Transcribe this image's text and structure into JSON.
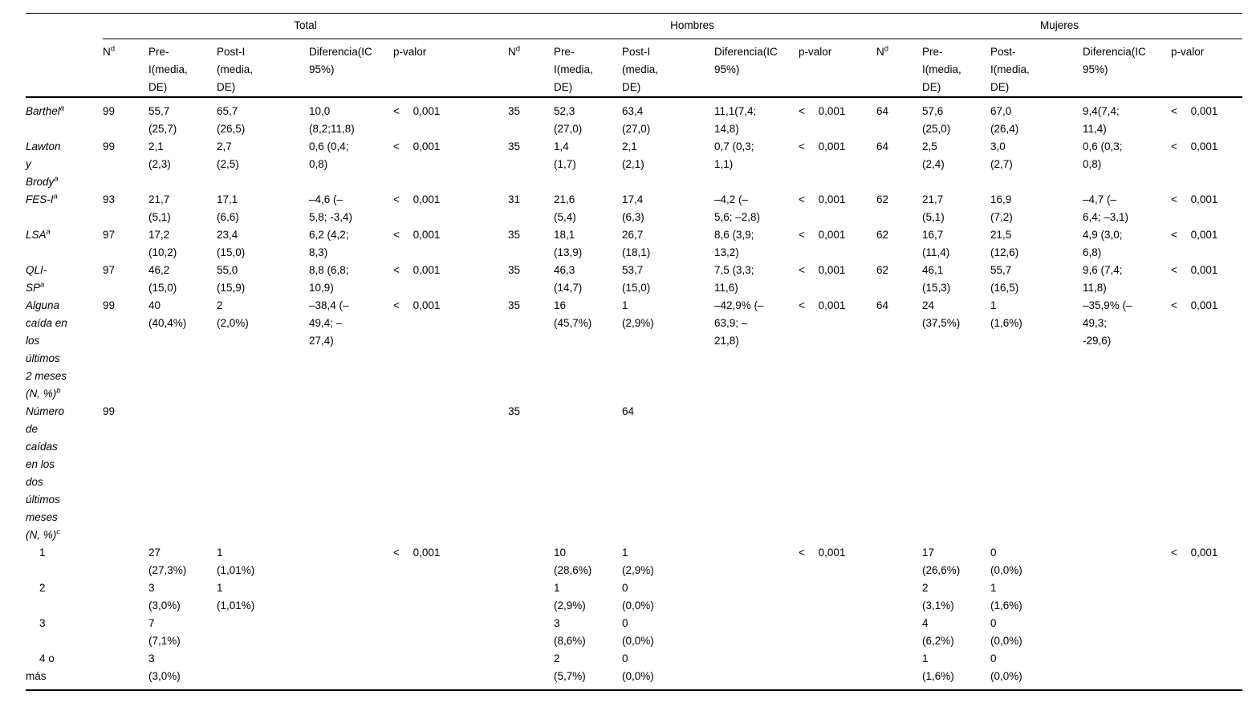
{
  "table": {
    "groups": [
      {
        "name": "Total",
        "headers": {
          "n": "N",
          "n_sup": "d",
          "pre": "Pre-\nI(media,\nDE)",
          "post": "Post-I\n(media,\nDE)",
          "dif": "Diferencia(IC\n95%)",
          "p": "p-valor"
        }
      },
      {
        "name": "Hombres",
        "headers": {
          "n": "N",
          "n_sup": "d",
          "pre": "Pre-\nI(media,\nDE)",
          "post": "Post-I\n(media,\nDE)",
          "dif": "Diferencia(IC\n95%)",
          "p": "p-valor"
        }
      },
      {
        "name": "Mujeres",
        "headers": {
          "n": "N",
          "n_sup": "d",
          "pre": "Pre-\nI(media,\nDE)",
          "post": "Post-\nI(media,\nDE)",
          "dif": "Diferencia(IC\n95%)",
          "p": "p-valor"
        }
      }
    ],
    "rows": [
      {
        "label": "Barthel",
        "sup": "a",
        "italic": true,
        "indent": false,
        "cells": [
          "99",
          "55,7\n(25,7)",
          "65,7\n(26,5)",
          "10,0\n(8,2;11,8)",
          "< 0,001",
          "35",
          "52,3\n(27,0)",
          "63,4\n(27,0)",
          "11,1(7,4;\n14,8)",
          "< 0,001",
          "64",
          "57,6\n(25,0)",
          "67,0\n(26,4)",
          "9,4(7,4;\n11,4)",
          "< 0,001"
        ]
      },
      {
        "label": "Lawton\ny\nBrody",
        "sup": "a",
        "italic": true,
        "indent": false,
        "cells": [
          "99",
          "2,1\n(2,3)",
          "2,7\n(2,5)",
          "0,6 (0,4;\n0,8)",
          "< 0,001",
          "35",
          "1,4\n(1,7)",
          "2,1\n(2,1)",
          "0,7 (0,3;\n1,1)",
          "< 0,001",
          "64",
          "2,5\n(2,4)",
          "3,0\n(2,7)",
          "0,6 (0,3;\n0,8)",
          "< 0,001"
        ]
      },
      {
        "label": "FES-I",
        "sup": "a",
        "italic": true,
        "indent": false,
        "cells": [
          "93",
          "21,7\n(5,1)",
          "17,1\n(6,6)",
          "–4,6 (–\n5,8; -3,4)",
          "< 0,001",
          "31",
          "21,6\n(5,4)",
          "17,4\n(6,3)",
          "–4,2 (–\n5,6; –2,8)",
          "< 0,001",
          "62",
          "21,7\n(5,1)",
          "16,9\n(7,2)",
          "–4,7 (–\n6,4; –3,1)",
          "< 0,001"
        ]
      },
      {
        "label": "LSA",
        "sup": "a",
        "italic": true,
        "indent": false,
        "cells": [
          "97",
          "17,2\n(10,2)",
          "23,4\n(15,0)",
          "6,2 (4,2;\n8,3)",
          "< 0,001",
          "35",
          "18,1\n(13,9)",
          "26,7\n(18,1)",
          "8,6 (3,9;\n13,2)",
          "< 0,001",
          "62",
          "16,7\n(11,4)",
          "21,5\n(12,6)",
          "4,9 (3,0;\n6,8)",
          "< 0,001"
        ]
      },
      {
        "label": "QLI-\nSP",
        "sup": "a",
        "italic": true,
        "indent": false,
        "cells": [
          "97",
          "46,2\n(15,0)",
          "55,0\n(15,9)",
          "8,8 (6,8;\n10,9)",
          "< 0,001",
          "35",
          "46,3\n(14,7)",
          "53,7\n(15,0)",
          "7,5 (3,3;\n11,6)",
          "< 0,001",
          "62",
          "46,1\n(15,3)",
          "55,7\n(16,5)",
          "9,6 (7,4;\n11,8)",
          "< 0,001"
        ]
      },
      {
        "label": "Alguna\ncaída en\nlos\núltimos\n2 meses\n(N, %)",
        "sup": "b",
        "italic": true,
        "indent": false,
        "cells": [
          "99",
          "40\n(40,4%)",
          "2\n(2,0%)",
          "–38,4 (–\n49,4; –\n27,4)",
          "< 0,001",
          "35",
          "16\n(45,7%)",
          "1\n(2,9%)",
          "–42,9% (–\n63,9; –\n21,8)",
          "< 0,001",
          "64",
          "24\n(37,5%)",
          "1\n(1,6%)",
          "–35,9% (–\n49,3;\n-29,6)",
          "< 0,001"
        ]
      },
      {
        "label": "Número\nde\ncaídas\nen los\ndos\núltimos\nmeses\n(N, %)",
        "sup": "c",
        "italic": true,
        "indent": false,
        "cells": [
          "99",
          "",
          "",
          "",
          "",
          "35",
          "",
          "64",
          "",
          "",
          "",
          "",
          "",
          "",
          ""
        ]
      },
      {
        "label": "1",
        "sup": "",
        "italic": false,
        "indent": true,
        "cells": [
          "",
          "27\n(27,3%)",
          "1\n(1,01%)",
          "",
          "< 0,001",
          "",
          "10\n(28,6%)",
          "1\n(2,9%)",
          "",
          "< 0,001",
          "",
          "17\n(26,6%)",
          "0\n(0,0%)",
          "",
          "< 0,001"
        ]
      },
      {
        "label": "2",
        "sup": "",
        "italic": false,
        "indent": true,
        "cells": [
          "",
          "3\n(3,0%)",
          "1\n(1,01%)",
          "",
          "",
          "",
          "1\n(2,9%)",
          "0\n(0,0%)",
          "",
          "",
          "",
          "2\n(3,1%)",
          "1\n(1,6%)",
          "",
          ""
        ]
      },
      {
        "label": "3",
        "sup": "",
        "italic": false,
        "indent": true,
        "cells": [
          "",
          "7\n(7,1%)",
          "",
          "",
          "",
          "",
          "3\n(8,6%)",
          "0\n(0,0%)",
          "",
          "",
          "",
          "4\n(6,2%)",
          "0\n(0,0%)",
          "",
          ""
        ]
      },
      {
        "label": "4 o\nmás",
        "sup": "",
        "italic": false,
        "indent": true,
        "cells": [
          "",
          "3\n(3,0%)",
          "",
          "",
          "",
          "",
          "2\n(5,7%)",
          "0\n(0,0%)",
          "",
          "",
          "",
          "1\n(1,6%)",
          "0\n(0,0%)",
          "",
          ""
        ]
      }
    ]
  }
}
